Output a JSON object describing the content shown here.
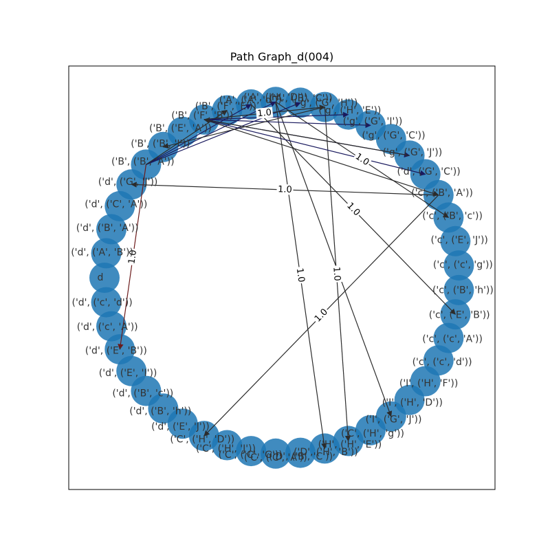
{
  "figure": {
    "title": "Path Graph_d(004)"
  },
  "style": {
    "node_color": "#1f77b4",
    "node_alpha": 0.85,
    "edge_dark": "#2b2b2b",
    "edge_navy": "#1a1a5e",
    "edge_red": "#6b1a1a"
  },
  "nodes": [
    "('d', ('c', 'A'))",
    "('d', ('c', 'd'))",
    "d",
    "('d', ('A', 'B'))",
    "('d', ('B', 'A'))",
    "('d', ('C', 'A'))",
    "('d', ('G', 'J'))",
    "('B', ('B', 'A'))",
    "('B', ('B', 'I'))",
    "('B', ('E', 'A'))",
    "('B', ('F', 'B'))",
    "('B', ('F', 'E'))",
    "('A', ('A', 'd'))",
    "('A', ('H', 'D'))",
    "('A', ('B', 'C'))",
    "('g', ('G', 'H'))",
    "('g', ('H', 'E'))",
    "('g', ('G', 'I'))",
    "('g', ('G', 'C'))",
    "('g', ('G', 'J'))",
    "('d', ('G', 'C'))",
    "('c', ('B', 'A'))",
    "('c', ('B', 'c'))",
    "('c', ('E', 'J'))",
    "('c', ('c', 'g'))",
    "('c', ('B', 'h'))",
    "('c', ('E', 'B'))",
    "('c', ('c', 'A'))",
    "('c', ('c', 'd'))",
    "('I', ('H', 'F'))",
    "('I', ('H', 'D'))",
    "('I', ('G', 'J'))",
    "('C', ('H', 'g'))",
    "('H', ('H', 'E'))",
    "('D', ('H', 'B'))",
    "('D', ('B', 'C'))",
    "('C', ('C', 'A'))",
    "('C', ('C', 'G'))",
    "('C', ('H', 'J'))",
    "('C', ('H', 'D'))",
    "('d', ('E', 'J'))",
    "('d', ('B', 'h'))",
    "('d', ('B', 'c'))",
    "('d', ('E', 'I'))",
    "('d', ('E', 'B'))"
  ],
  "edges": [
    {
      "source": "('c', ('B', 'A'))",
      "target": "('d', ('G', 'J'))",
      "weight": "1.0",
      "color": "dark"
    },
    {
      "source": "('c', ('B', 'A'))",
      "target": "('C', ('H', 'D'))",
      "weight": "1.0",
      "color": "dark"
    },
    {
      "source": "('A', ('H', 'D'))",
      "target": "('D', ('H', 'B'))",
      "weight": "1.0",
      "color": "dark"
    },
    {
      "source": "('g', ('G', 'H'))",
      "target": "('H', ('H', 'E'))",
      "weight": "1.0",
      "color": "dark"
    },
    {
      "source": "('A', ('H', 'D'))",
      "target": "('c', ('B', 'c'))",
      "weight": "1.0",
      "color": "dark"
    },
    {
      "source": "('A', ('H', 'D'))",
      "target": "('I', ('G', 'J'))",
      "weight": "",
      "color": "dark"
    },
    {
      "source": "('A', ('A', 'd'))",
      "target": "('c', ('E', 'B'))",
      "weight": "1.0",
      "color": "dark"
    },
    {
      "source": "('B', ('B', 'A'))",
      "target": "('d', ('E', 'B'))",
      "weight": "1.0",
      "color": "red"
    },
    {
      "source": "('B', ('B', 'A'))",
      "target": "('A', ('A', 'd'))",
      "weight": "",
      "color": "navy"
    },
    {
      "source": "('B', ('B', 'A'))",
      "target": "('A', ('H', 'D'))",
      "weight": "",
      "color": "navy"
    },
    {
      "source": "('B', ('B', 'A'))",
      "target": "('A', ('B', 'C'))",
      "weight": "",
      "color": "navy"
    },
    {
      "source": "('B', ('B', 'A'))",
      "target": "('B', ('F', 'E'))",
      "weight": "",
      "color": "dark"
    },
    {
      "source": "('B', ('F', 'B'))",
      "target": "('g', ('G', 'H'))",
      "weight": "1.0",
      "color": "dark"
    },
    {
      "source": "('B', ('F', 'B'))",
      "target": "('g', ('H', 'E'))",
      "weight": "",
      "color": "navy"
    },
    {
      "source": "('B', ('F', 'B'))",
      "target": "('g', ('G', 'I'))",
      "weight": "",
      "color": "navy"
    },
    {
      "source": "('B', ('F', 'B'))",
      "target": "('g', ('G', 'J'))",
      "weight": "",
      "color": "navy"
    },
    {
      "source": "('B', ('F', 'B'))",
      "target": "('d', ('G', 'C'))",
      "weight": "",
      "color": "navy"
    },
    {
      "source": "('B', ('F', 'B'))",
      "target": "('c', ('B', 'A'))",
      "weight": "",
      "color": "dark"
    },
    {
      "source": "('g', ('G', 'H'))",
      "target": "('B', ('B', 'I'))",
      "weight": "",
      "color": "dark"
    },
    {
      "source": "('g', ('G', 'J'))",
      "target": "('B', ('F', 'B'))",
      "weight": "",
      "color": "dark"
    }
  ]
}
